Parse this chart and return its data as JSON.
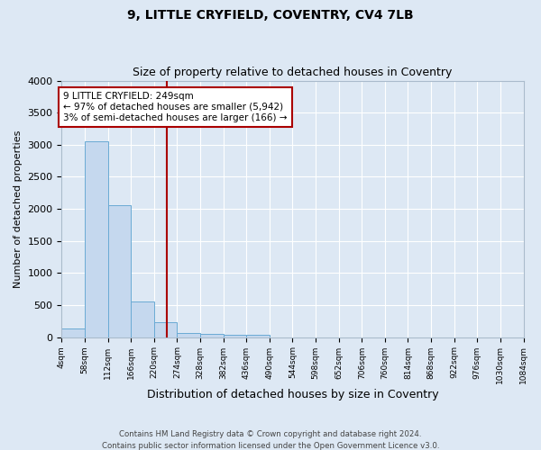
{
  "title": "9, LITTLE CRYFIELD, COVENTRY, CV4 7LB",
  "subtitle": "Size of property relative to detached houses in Coventry",
  "xlabel": "Distribution of detached houses by size in Coventry",
  "ylabel": "Number of detached properties",
  "bin_edges": [
    4,
    58,
    112,
    166,
    220,
    274,
    328,
    382,
    436,
    490,
    544,
    598,
    652,
    706,
    760,
    814,
    868,
    922,
    976,
    1030,
    1084
  ],
  "bin_labels": [
    "4sqm",
    "58sqm",
    "112sqm",
    "166sqm",
    "220sqm",
    "274sqm",
    "328sqm",
    "382sqm",
    "436sqm",
    "490sqm",
    "544sqm",
    "598sqm",
    "652sqm",
    "706sqm",
    "760sqm",
    "814sqm",
    "868sqm",
    "922sqm",
    "976sqm",
    "1030sqm",
    "1084sqm"
  ],
  "counts": [
    140,
    3060,
    2060,
    560,
    230,
    70,
    50,
    40,
    40,
    0,
    0,
    0,
    0,
    0,
    0,
    0,
    0,
    0,
    0,
    0
  ],
  "bar_color": "#c5d8ee",
  "bar_edge_color": "#6aaad4",
  "property_value": 249,
  "vline_color": "#aa0000",
  "annotation_line1": "9 LITTLE CRYFIELD: 249sqm",
  "annotation_line2": "← 97% of detached houses are smaller (5,942)",
  "annotation_line3": "3% of semi-detached houses are larger (166) →",
  "annotation_box_color": "#ffffff",
  "annotation_box_edge": "#aa0000",
  "ylim": [
    0,
    4000
  ],
  "background_color": "#dde8f4",
  "grid_color": "#ffffff",
  "footer": "Contains HM Land Registry data © Crown copyright and database right 2024.\nContains public sector information licensed under the Open Government Licence v3.0."
}
